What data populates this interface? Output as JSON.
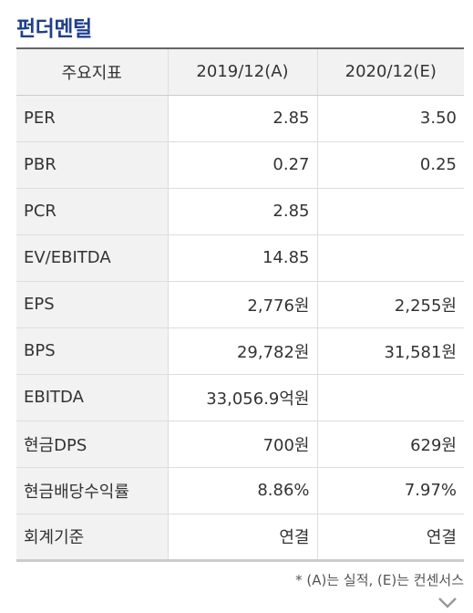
{
  "title": "펀더멘털",
  "table": {
    "headers": [
      "주요지표",
      "2019/12(A)",
      "2020/12(E)"
    ],
    "rows": [
      {
        "label": "PER",
        "y2019": "2.85",
        "y2020": "3.50"
      },
      {
        "label": "PBR",
        "y2019": "0.27",
        "y2020": "0.25"
      },
      {
        "label": "PCR",
        "y2019": "2.85",
        "y2020": ""
      },
      {
        "label": "EV/EBITDA",
        "y2019": "14.85",
        "y2020": ""
      },
      {
        "label": "EPS",
        "y2019": "2,776원",
        "y2020": "2,255원"
      },
      {
        "label": "BPS",
        "y2019": "29,782원",
        "y2020": "31,581원"
      },
      {
        "label": "EBITDA",
        "y2019": "33,056.9억원",
        "y2020": ""
      },
      {
        "label": "현금DPS",
        "y2019": "700원",
        "y2020": "629원"
      },
      {
        "label": "현금배당수익률",
        "y2019": "8.86%",
        "y2020": "7.97%"
      },
      {
        "label": "회계기준",
        "y2019": "연결",
        "y2020": "연결"
      }
    ]
  },
  "footnote": "* (A)는 실적, (E)는 컨센서스",
  "icons": {
    "expand": "chevron-down-icon"
  }
}
